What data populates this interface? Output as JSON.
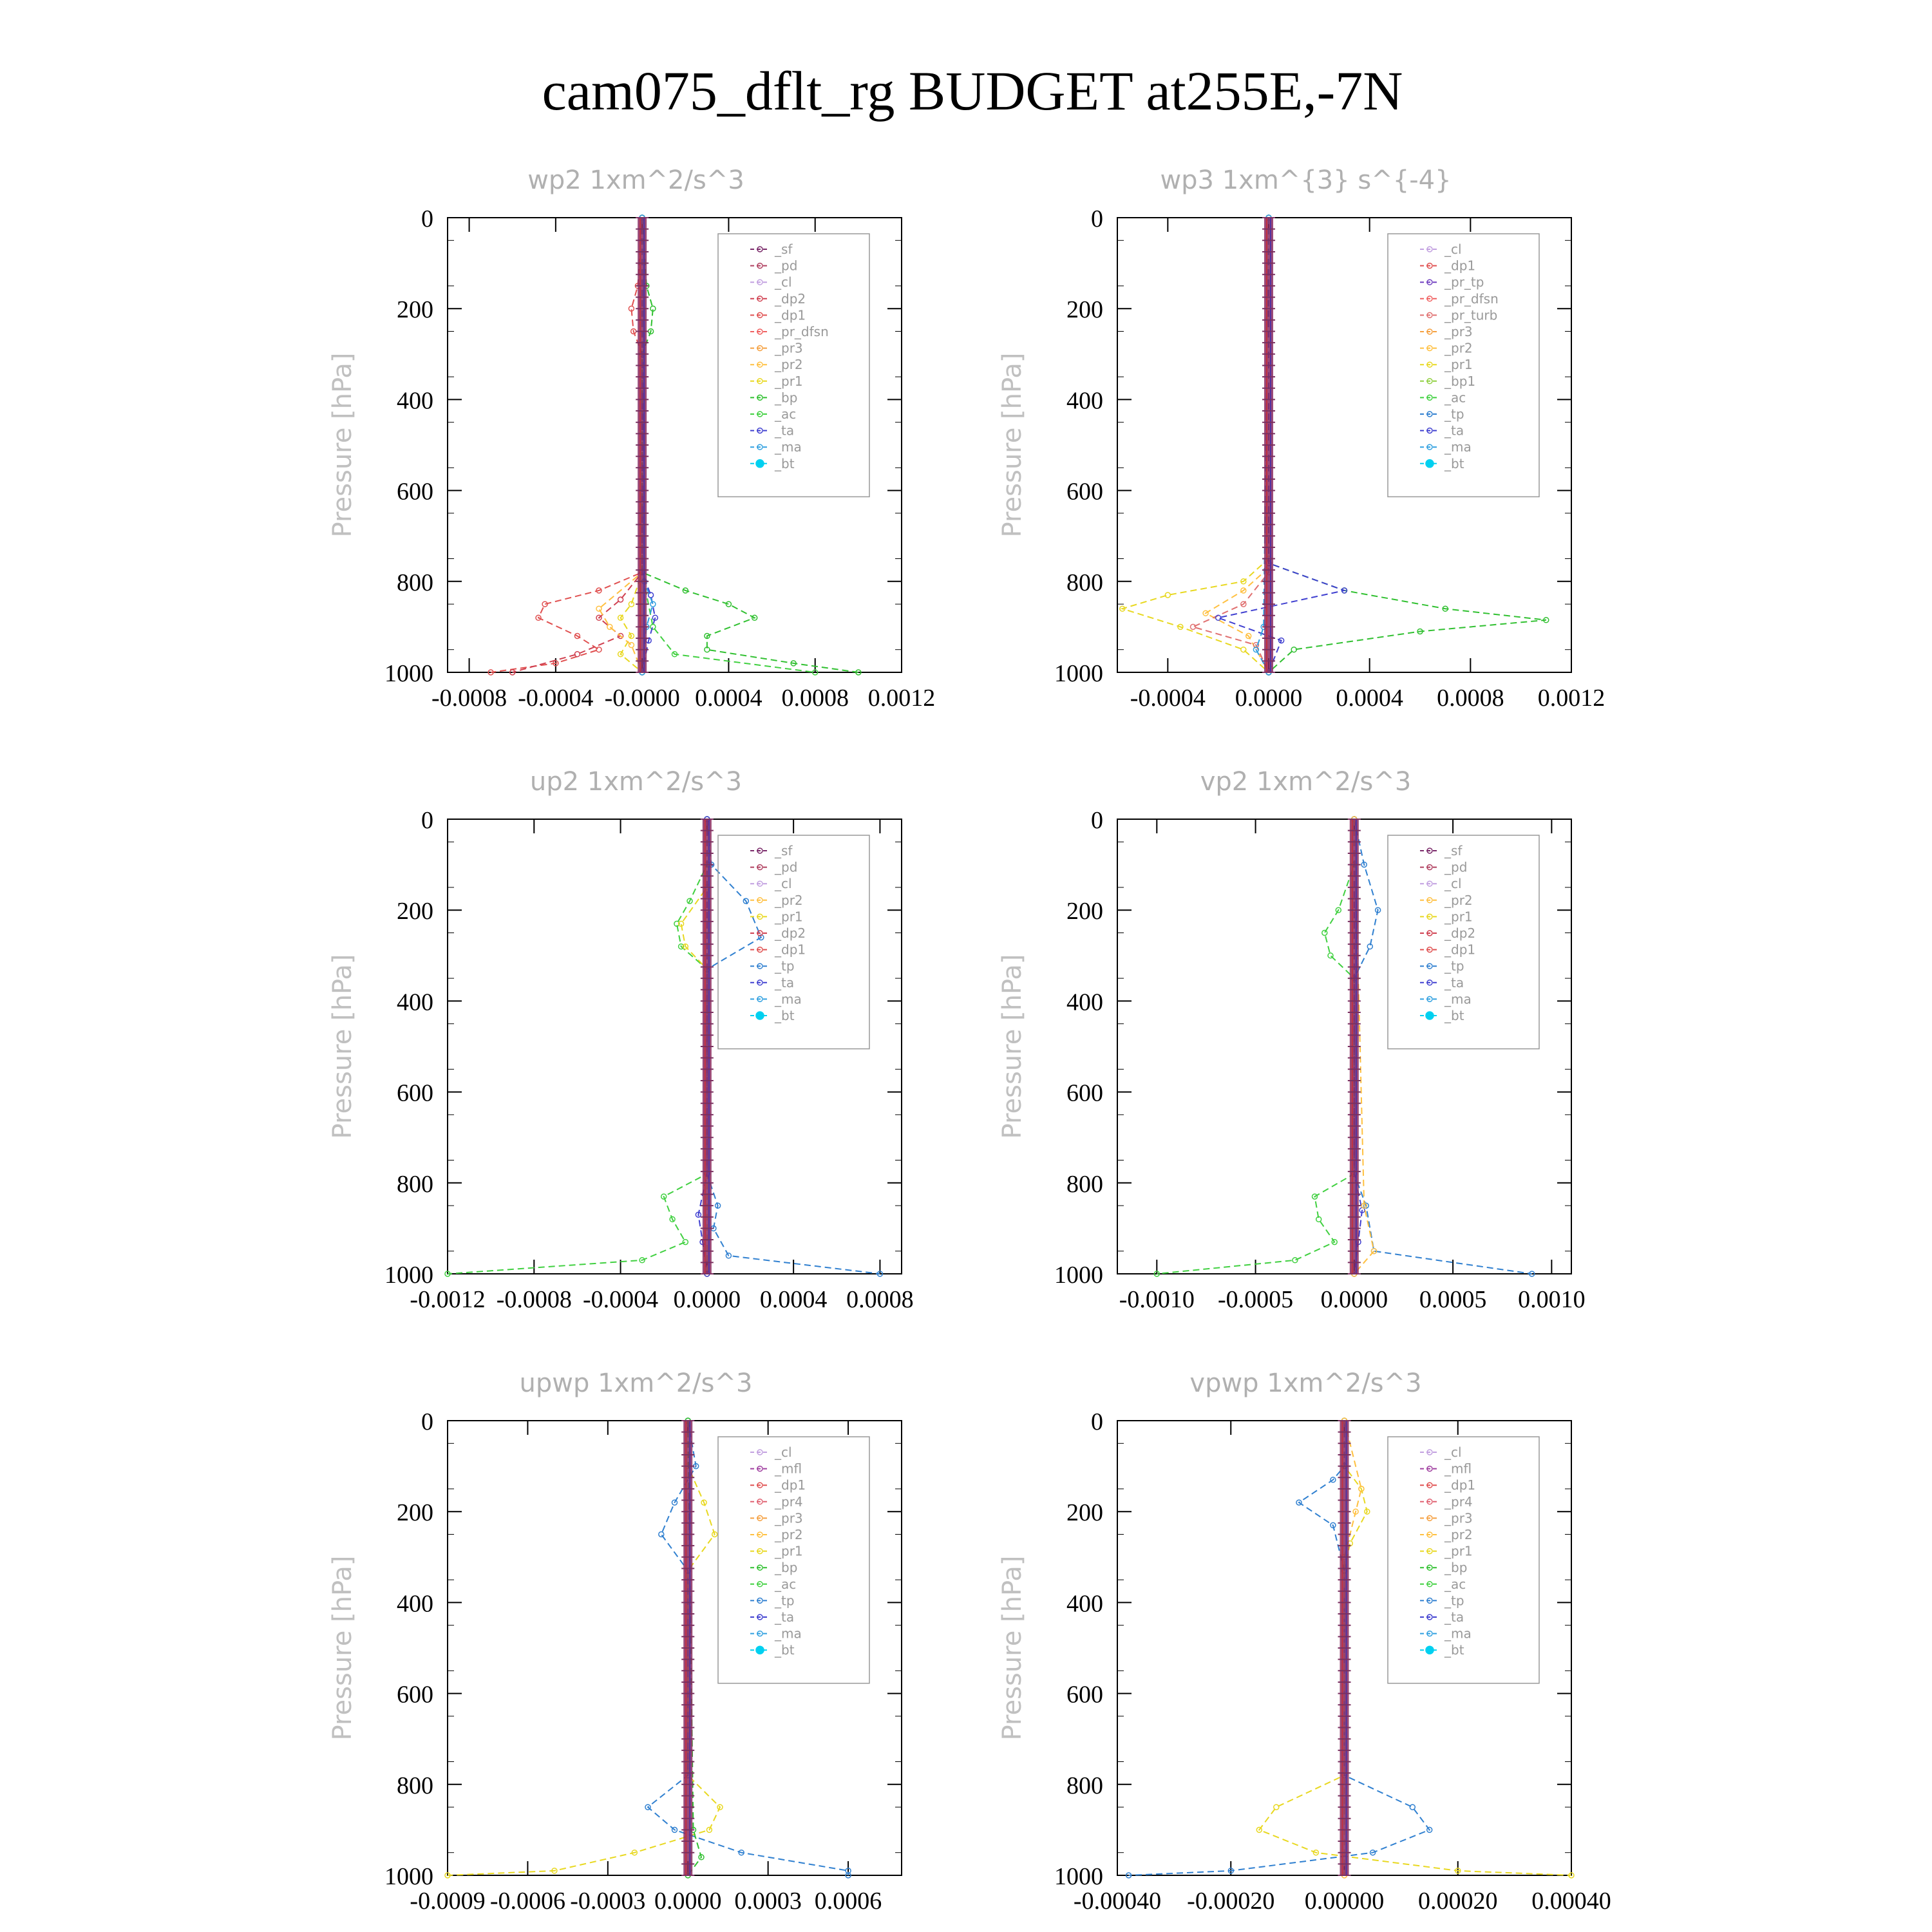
{
  "page": {
    "title": "cam075_dflt_rg  BUDGET at255E,-7N"
  },
  "colors": {
    "sf": "#7a2a6a",
    "pd": "#b04060",
    "cl": "#c2a0e0",
    "dp1": "#e05050",
    "dp2": "#d04050",
    "pr_dfsn": "#f06060",
    "pr3": "#f5a040",
    "pr2": "#ffc040",
    "pr1": "#e8d820",
    "bp": "#30c030",
    "ac": "#40d040",
    "tp": "#3080d0",
    "ta": "#4040d0",
    "ma": "#30a0e0",
    "bt": "#00d0f0",
    "pr4": "#e06070",
    "mfl": "#a040a0",
    "pr_tp": "#7040c0",
    "pr_turb": "#e07070",
    "bp1": "#90d040"
  },
  "chart_data": [
    {
      "type": "line",
      "title": "wp2  1xm^2/s^3",
      "ylabel": "Pressure [hPa]",
      "xlim": [
        -0.0009,
        0.0012
      ],
      "ylim": [
        1000,
        0
      ],
      "xticks": [
        -0.0008,
        -0.0004,
        0,
        0.0004,
        0.0008,
        0.0012
      ],
      "xtick_labels": [
        "-0.0008",
        "-0.0004",
        "-0.0000",
        "0.0004",
        "0.0008",
        "0.0012"
      ],
      "yticks": [
        0,
        200,
        400,
        600,
        800,
        1000
      ],
      "ytick_labels": [
        "0",
        "200",
        "400",
        "600",
        "800",
        "1000"
      ],
      "legend": [
        "_sf",
        "_pd",
        "_cl",
        "_dp2",
        "_dp1",
        "_pr_dfsn",
        "_pr3",
        "_pr2",
        "_pr1",
        "_bp",
        "_ac",
        "_ta",
        "_ma",
        "_bt"
      ],
      "series": [
        {
          "name": "_dp1",
          "color_key": "dp1",
          "pressure": [
            0,
            150,
            200,
            250,
            300,
            780,
            820,
            850,
            880,
            920,
            950,
            980,
            1000
          ],
          "values": [
            0,
            -2e-05,
            -5e-05,
            -4e-05,
            0,
            0,
            -0.0002,
            -0.00045,
            -0.00048,
            -0.0003,
            -0.0002,
            -0.0004,
            -0.0007
          ]
        },
        {
          "name": "_dp2",
          "color_key": "dp2",
          "pressure": [
            0,
            780,
            840,
            880,
            920,
            960,
            1000
          ],
          "values": [
            0,
            0,
            -0.0001,
            -0.0002,
            -0.0001,
            -0.0003,
            -0.0006
          ]
        },
        {
          "name": "_pr1",
          "color_key": "pr1",
          "pressure": [
            0,
            780,
            850,
            880,
            920,
            960,
            1000
          ],
          "values": [
            0,
            0,
            -5e-05,
            -0.0001,
            -5e-05,
            -0.0001,
            0
          ]
        },
        {
          "name": "_pr2",
          "color_key": "pr2",
          "pressure": [
            0,
            780,
            860,
            900,
            940,
            1000
          ],
          "values": [
            0,
            0,
            -0.0002,
            -0.00015,
            -5e-05,
            0
          ]
        },
        {
          "name": "_bp",
          "color_key": "bp",
          "pressure": [
            0,
            150,
            200,
            250,
            300,
            780,
            820,
            850,
            880,
            920,
            950,
            980,
            1000
          ],
          "values": [
            0,
            2e-05,
            5e-05,
            4e-05,
            0,
            0,
            0.0002,
            0.0004,
            0.00052,
            0.0003,
            0.0003,
            0.0007,
            0.001
          ]
        },
        {
          "name": "_ac",
          "color_key": "ac",
          "pressure": [
            0,
            780,
            900,
            960,
            1000
          ],
          "values": [
            0,
            0,
            5e-05,
            0.00015,
            0.0008
          ]
        },
        {
          "name": "_ta",
          "color_key": "ta",
          "pressure": [
            0,
            780,
            830,
            880,
            930,
            1000
          ],
          "values": [
            0,
            0,
            4e-05,
            6e-05,
            3e-05,
            0
          ]
        },
        {
          "name": "_ma",
          "color_key": "ma",
          "pressure": [
            0,
            800,
            850,
            900,
            1000
          ],
          "values": [
            0,
            1e-05,
            5e-05,
            2e-05,
            0
          ]
        }
      ]
    },
    {
      "type": "line",
      "title": "wp3  1xm^{3} s^{-4}",
      "ylabel": "Pressure [hPa]",
      "xlim": [
        -0.0006,
        0.0012
      ],
      "ylim": [
        1000,
        0
      ],
      "xticks": [
        -0.0004,
        0,
        0.0004,
        0.0008,
        0.0012
      ],
      "xtick_labels": [
        "-0.0004",
        "0.0000",
        "0.0004",
        "0.0008",
        "0.0012"
      ],
      "yticks": [
        0,
        200,
        400,
        600,
        800,
        1000
      ],
      "ytick_labels": [
        "0",
        "200",
        "400",
        "600",
        "800",
        "1000"
      ],
      "legend": [
        "_cl",
        "_dp1",
        "_pr_tp",
        "_pr_dfsn",
        "_pr_turb",
        "_pr3",
        "_pr2",
        "_pr1",
        "_bp1",
        "_ac",
        "_tp",
        "_ta",
        "_ma",
        "_bt"
      ],
      "series": [
        {
          "name": "_pr1",
          "color_key": "pr1",
          "pressure": [
            0,
            750,
            800,
            830,
            860,
            900,
            950,
            1000
          ],
          "values": [
            0,
            0,
            -0.0001,
            -0.0004,
            -0.00058,
            -0.00035,
            -0.0001,
            0
          ]
        },
        {
          "name": "_pr2",
          "color_key": "pr2",
          "pressure": [
            0,
            770,
            820,
            870,
            920,
            1000
          ],
          "values": [
            0,
            0,
            -0.0001,
            -0.00025,
            -8e-05,
            0
          ]
        },
        {
          "name": "_pr_turb",
          "color_key": "pr_turb",
          "pressure": [
            0,
            780,
            850,
            900,
            940,
            1000
          ],
          "values": [
            0,
            0,
            -0.0001,
            -0.0003,
            -5e-05,
            0
          ]
        },
        {
          "name": "_bp1",
          "color_key": "bp",
          "pressure": [
            0,
            760,
            820,
            860,
            885,
            910,
            950,
            1000
          ],
          "values": [
            0,
            0,
            0.0003,
            0.0007,
            0.0011,
            0.0006,
            0.0001,
            0
          ]
        },
        {
          "name": "_tp",
          "color_key": "ta",
          "pressure": [
            0,
            760,
            820,
            880,
            930,
            1000
          ],
          "values": [
            0,
            0,
            0.0003,
            -0.0002,
            5e-05,
            0
          ]
        },
        {
          "name": "_ma",
          "color_key": "ma",
          "pressure": [
            0,
            900,
            950,
            1000
          ],
          "values": [
            0,
            -2e-05,
            -5e-05,
            0
          ]
        }
      ]
    },
    {
      "type": "line",
      "title": "up2  1xm^2/s^3",
      "ylabel": "Pressure [hPa]",
      "xlim": [
        -0.0012,
        0.0009
      ],
      "ylim": [
        1000,
        0
      ],
      "xticks": [
        -0.0012,
        -0.0008,
        -0.0004,
        0,
        0.0004,
        0.0008
      ],
      "xtick_labels": [
        "-0.0012",
        "-0.0008",
        "-0.0004",
        "0.0000",
        "0.0004",
        "0.0008"
      ],
      "yticks": [
        0,
        200,
        400,
        600,
        800,
        1000
      ],
      "ytick_labels": [
        "0",
        "200",
        "400",
        "600",
        "800",
        "1000"
      ],
      "legend": [
        "_sf",
        "_pd",
        "_cl",
        "_pr2",
        "_pr1",
        "_dp2",
        "_dp1",
        "_tp",
        "_ta",
        "_ma",
        "_bt"
      ],
      "series": [
        {
          "name": "_dp1",
          "color_key": "ac",
          "pressure": [
            0,
            100,
            180,
            230,
            280,
            330,
            780,
            830,
            880,
            930,
            970,
            1000
          ],
          "values": [
            0,
            0,
            -8e-05,
            -0.00014,
            -0.00012,
            0,
            0,
            -0.0002,
            -0.00016,
            -0.0001,
            -0.0003,
            -0.0012
          ]
        },
        {
          "name": "_pr1",
          "color_key": "pr1",
          "pressure": [
            0,
            150,
            230,
            280,
            330,
            1000
          ],
          "values": [
            0,
            0,
            -0.00012,
            -0.0001,
            0,
            0
          ]
        },
        {
          "name": "_tp",
          "color_key": "tp",
          "pressure": [
            0,
            100,
            180,
            260,
            330,
            780,
            850,
            900,
            960,
            1000
          ],
          "values": [
            0,
            2e-05,
            0.00018,
            0.00025,
            0,
            0,
            5e-05,
            3e-05,
            0.0001,
            0.0008
          ]
        },
        {
          "name": "_ta",
          "color_key": "ta",
          "pressure": [
            0,
            780,
            870,
            930,
            1000
          ],
          "values": [
            0,
            0,
            -4e-05,
            -2e-05,
            0
          ]
        }
      ]
    },
    {
      "type": "line",
      "title": "vp2  1xm^2/s^3",
      "ylabel": "Pressure [hPa]",
      "xlim": [
        -0.0012,
        0.0011
      ],
      "ylim": [
        1000,
        0
      ],
      "xticks": [
        -0.001,
        -0.0005,
        0,
        0.0005,
        0.001
      ],
      "xtick_labels": [
        "-0.0010",
        "-0.0005",
        "0.0000",
        "0.0005",
        "0.0010"
      ],
      "yticks": [
        0,
        200,
        400,
        600,
        800,
        1000
      ],
      "ytick_labels": [
        "0",
        "200",
        "400",
        "600",
        "800",
        "1000"
      ],
      "legend": [
        "_sf",
        "_pd",
        "_cl",
        "_pr2",
        "_pr1",
        "_dp2",
        "_dp1",
        "_tp",
        "_ta",
        "_ma",
        "_bt"
      ],
      "series": [
        {
          "name": "_dp1",
          "color_key": "ac",
          "pressure": [
            0,
            100,
            200,
            250,
            300,
            350,
            780,
            830,
            880,
            930,
            970,
            1000
          ],
          "values": [
            0,
            0,
            -8e-05,
            -0.00015,
            -0.00012,
            0,
            0,
            -0.0002,
            -0.00018,
            -0.0001,
            -0.0003,
            -0.001
          ]
        },
        {
          "name": "_tp",
          "color_key": "tp",
          "pressure": [
            0,
            100,
            200,
            280,
            350,
            780,
            850,
            950,
            1000
          ],
          "values": [
            0,
            5e-05,
            0.00012,
            8e-05,
            0,
            0,
            6e-05,
            0.0001,
            0.0009
          ]
        },
        {
          "name": "_ta",
          "color_key": "ta",
          "pressure": [
            0,
            780,
            860,
            930,
            1000
          ],
          "values": [
            0,
            0,
            4e-05,
            2e-05,
            0
          ]
        },
        {
          "name": "_pr2",
          "color_key": "pr2",
          "pressure": [
            0,
            850,
            950,
            1000
          ],
          "values": [
            0,
            5e-05,
            0.0001,
            0
          ]
        }
      ]
    },
    {
      "type": "line",
      "title": "upwp  1xm^2/s^3",
      "ylabel": "Pressure [hPa]",
      "xlim": [
        -0.0009,
        0.0008
      ],
      "ylim": [
        1000,
        0
      ],
      "xticks": [
        -0.0009,
        -0.0006,
        -0.0003,
        0,
        0.0003,
        0.0006
      ],
      "xtick_labels": [
        "-0.0009",
        "-0.0006",
        "-0.0003",
        "0.0000",
        "0.0003",
        "0.0006"
      ],
      "yticks": [
        0,
        200,
        400,
        600,
        800,
        1000
      ],
      "ytick_labels": [
        "0",
        "200",
        "400",
        "600",
        "800",
        "1000"
      ],
      "legend": [
        "_cl",
        "_mfl",
        "_dp1",
        "_pr4",
        "_pr3",
        "_pr2",
        "_pr1",
        "_bp",
        "_ac",
        "_tp",
        "_ta",
        "_ma",
        "_bt"
      ],
      "series": [
        {
          "name": "_pr1",
          "color_key": "pr1",
          "pressure": [
            0,
            100,
            180,
            250,
            330,
            780,
            850,
            900,
            950,
            990,
            1000
          ],
          "values": [
            0,
            0,
            6e-05,
            0.0001,
            0,
            0,
            0.00012,
            8e-05,
            -0.0002,
            -0.0005,
            -0.0009
          ]
        },
        {
          "name": "_tp",
          "color_key": "tp",
          "pressure": [
            0,
            100,
            180,
            250,
            330,
            780,
            850,
            900,
            950,
            990,
            1000
          ],
          "values": [
            0,
            3e-05,
            -5e-05,
            -0.0001,
            0,
            0,
            -0.00015,
            -5e-05,
            0.0002,
            0.0006,
            0.0006
          ]
        },
        {
          "name": "_bp",
          "color_key": "bp",
          "pressure": [
            0,
            900,
            960,
            1000
          ],
          "values": [
            0,
            2e-05,
            5e-05,
            0
          ]
        }
      ]
    },
    {
      "type": "line",
      "title": "vpwp  1xm^2/s^3",
      "ylabel": "Pressure [hPa]",
      "xlim": [
        -0.0004,
        0.0004
      ],
      "ylim": [
        1000,
        0
      ],
      "xticks": [
        -0.0004,
        -0.0002,
        0,
        0.0002,
        0.0004
      ],
      "xtick_labels": [
        "-0.00040",
        "-0.00020",
        "0.00000",
        "0.00020",
        "0.00040"
      ],
      "yticks": [
        0,
        200,
        400,
        600,
        800,
        1000
      ],
      "ytick_labels": [
        "0",
        "200",
        "400",
        "600",
        "800",
        "1000"
      ],
      "legend": [
        "_cl",
        "_mfl",
        "_dp1",
        "_pr4",
        "_pr3",
        "_pr2",
        "_pr1",
        "_bp",
        "_ac",
        "_tp",
        "_ta",
        "_ma",
        "_bt"
      ],
      "series": [
        {
          "name": "_pr1",
          "color_key": "pr1",
          "pressure": [
            0,
            100,
            150,
            200,
            270,
            330,
            780,
            850,
            900,
            950,
            990,
            1000
          ],
          "values": [
            0,
            0,
            3e-05,
            4e-05,
            1e-05,
            0,
            0,
            -0.00012,
            -0.00015,
            -5e-05,
            0.0002,
            0.0004
          ]
        },
        {
          "name": "_tp",
          "color_key": "tp",
          "pressure": [
            0,
            100,
            130,
            180,
            230,
            330,
            780,
            850,
            900,
            950,
            990,
            1000
          ],
          "values": [
            0,
            0,
            -2e-05,
            -8e-05,
            -2e-05,
            0,
            0,
            0.00012,
            0.00015,
            5e-05,
            -0.0002,
            -0.00038
          ]
        },
        {
          "name": "_pr2",
          "color_key": "pr2",
          "pressure": [
            0,
            150,
            200,
            300,
            1000
          ],
          "values": [
            0,
            3e-05,
            2e-05,
            0,
            0
          ]
        }
      ]
    }
  ]
}
